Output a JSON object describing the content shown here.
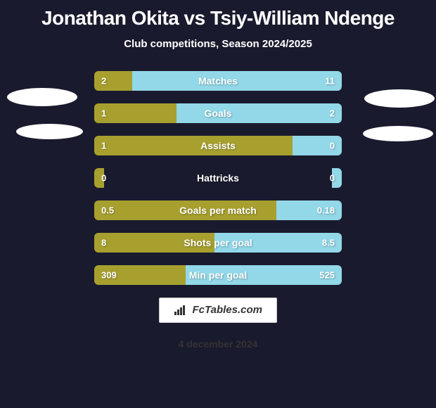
{
  "title": "Jonathan Okita vs Tsiy-William Ndenge",
  "subtitle": "Club competitions, Season 2024/2025",
  "date": "4 december 2024",
  "logo_text": "FcTables.com",
  "colors": {
    "background": "#1a1a2e",
    "left_bar": "#a7a02f",
    "right_bar": "#92d8e8",
    "text": "#ffffff",
    "ellipse": "#ffffff"
  },
  "stats": [
    {
      "label": "Matches",
      "left_value": "2",
      "right_value": "11",
      "left_pct": 15.4,
      "right_pct": 84.6
    },
    {
      "label": "Goals",
      "left_value": "1",
      "right_value": "2",
      "left_pct": 33.3,
      "right_pct": 66.7
    },
    {
      "label": "Assists",
      "left_value": "1",
      "right_value": "0",
      "left_pct": 80,
      "right_pct": 20
    },
    {
      "label": "Hattricks",
      "left_value": "0",
      "right_value": "0",
      "left_pct": 4,
      "right_pct": 4
    },
    {
      "label": "Goals per match",
      "left_value": "0.5",
      "right_value": "0.18",
      "left_pct": 73.5,
      "right_pct": 26.5
    },
    {
      "label": "Shots per goal",
      "left_value": "8",
      "right_value": "8.5",
      "left_pct": 48.5,
      "right_pct": 51.5
    },
    {
      "label": "Min per goal",
      "left_value": "309",
      "right_value": "525",
      "left_pct": 37,
      "right_pct": 63
    }
  ]
}
